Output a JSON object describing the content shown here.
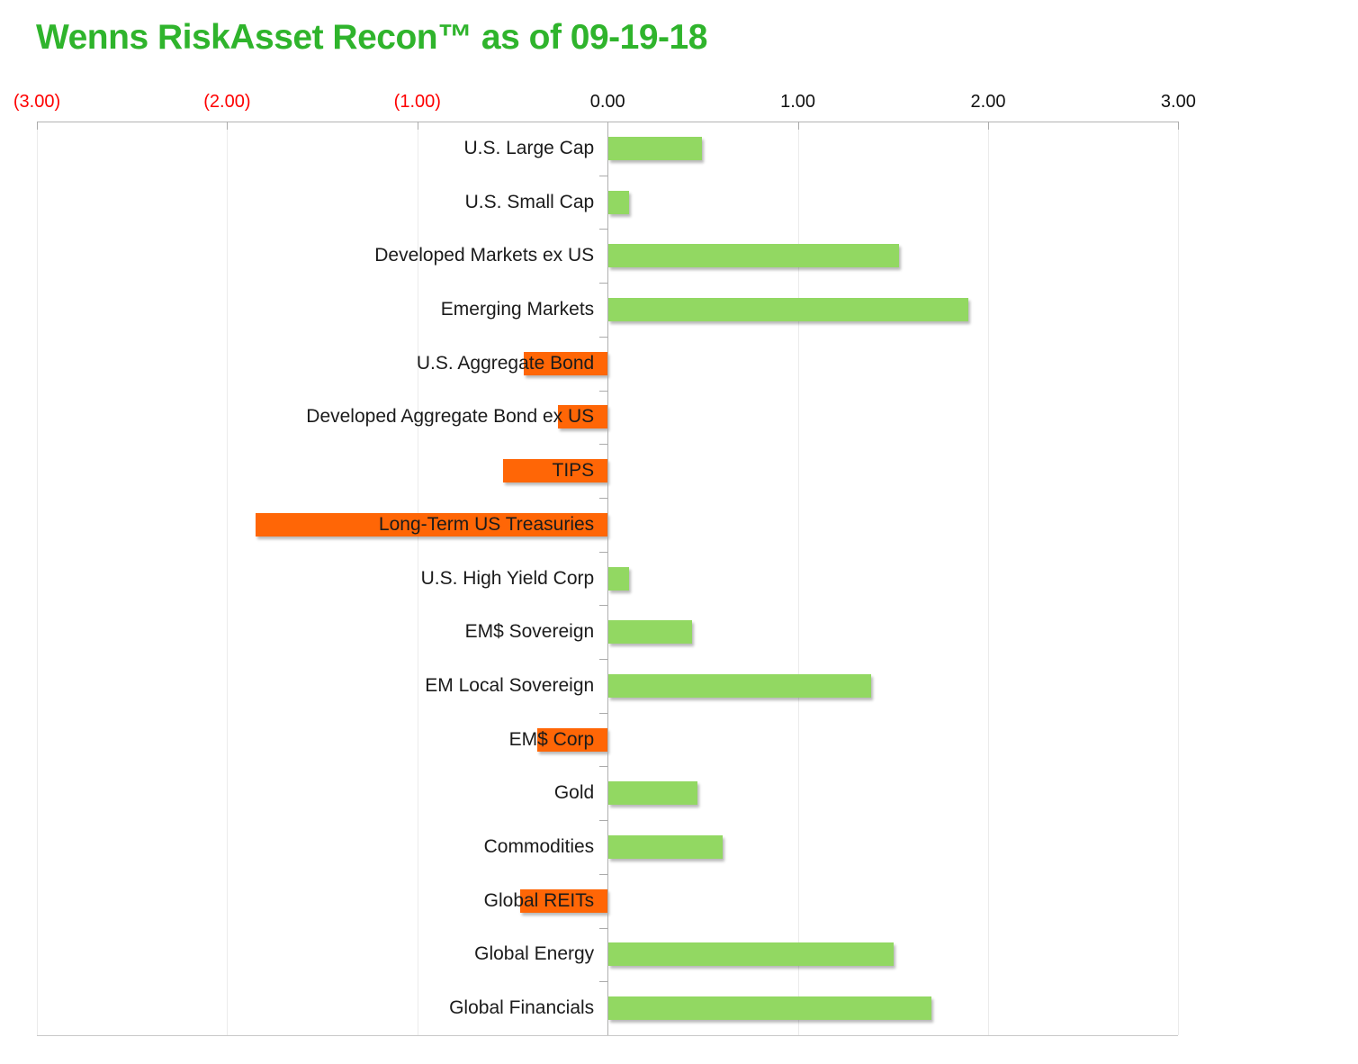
{
  "chart_data": {
    "type": "bar",
    "orientation": "horizontal",
    "title": "Wenns RiskAsset Recon™ as of 09-19-18",
    "categories": [
      "U.S. Large Cap",
      "U.S. Small Cap",
      "Developed Markets ex US",
      "Emerging Markets",
      "U.S. Aggregate Bond",
      "Developed Aggregate Bond ex US",
      "TIPS",
      "Long-Term US Treasuries",
      "U.S. High Yield Corp",
      "EM$ Sovereign",
      "EM Local Sovereign",
      "EM$ Corp",
      "Gold",
      "Commodities",
      "Global REITs",
      "Global Energy",
      "Global Financials"
    ],
    "values": [
      0.49,
      0.11,
      1.53,
      1.89,
      -0.44,
      -0.26,
      -0.55,
      -1.85,
      0.11,
      0.44,
      1.38,
      -0.37,
      0.47,
      0.6,
      -0.46,
      1.5,
      1.7
    ],
    "xlim": [
      -3,
      3
    ],
    "x_ticks": [
      {
        "value": -3,
        "label": "(3.00)",
        "negative": true
      },
      {
        "value": -2,
        "label": "(2.00)",
        "negative": true
      },
      {
        "value": -1,
        "label": "(1.00)",
        "negative": true
      },
      {
        "value": 0,
        "label": "0.00",
        "negative": false
      },
      {
        "value": 1,
        "label": "1.00",
        "negative": false
      },
      {
        "value": 2,
        "label": "2.00",
        "negative": false
      },
      {
        "value": 3,
        "label": "3.00",
        "negative": false
      }
    ],
    "colors": {
      "positive_bar": "#92d862",
      "negative_bar": "#ff6606",
      "title": "#2fb42c",
      "negative_tick_label": "#fe0000",
      "tick_label": "#111111"
    },
    "legend": "none",
    "grid": "vertical gridlines at 1.00 intervals, negative axis labels in red parentheses"
  }
}
